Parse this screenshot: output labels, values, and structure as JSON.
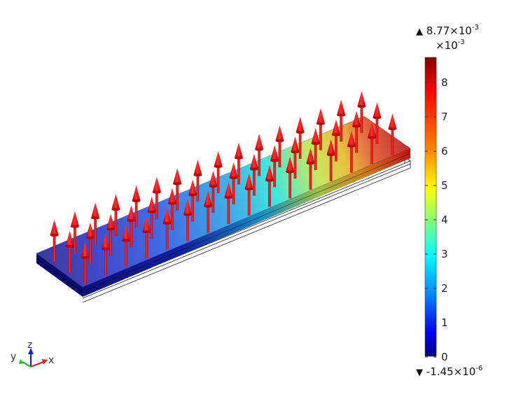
{
  "colorbar": {
    "max_label_prefix": "8.77×10",
    "max_label_exp": "-3",
    "scale_label_prefix": "×10",
    "scale_label_exp": "-3",
    "min_label_prefix": "-1.45×10",
    "min_label_exp": "-6",
    "ticks": [
      "8",
      "7",
      "6",
      "5",
      "4",
      "3",
      "2",
      "1",
      "0"
    ],
    "colors": [
      "#7f0000",
      "#ff0000",
      "#ff7f00",
      "#ffff00",
      "#7fff7f",
      "#00ffff",
      "#007fff",
      "#0000ff",
      "#00007f"
    ],
    "max_marker": "▲",
    "min_marker": "▼"
  },
  "axes": {
    "x": "x",
    "y": "y",
    "z": "z",
    "x_color": "#e02020",
    "y_color": "#20c020",
    "z_color": "#1020e0"
  },
  "scene": {
    "description": "3D slab colored by surface value with red arrows pointing up (+z)",
    "arrow_color": "#ee1111",
    "slab_gradient_left": "#2a30c8",
    "slab_gradient_right": "#c01818"
  }
}
